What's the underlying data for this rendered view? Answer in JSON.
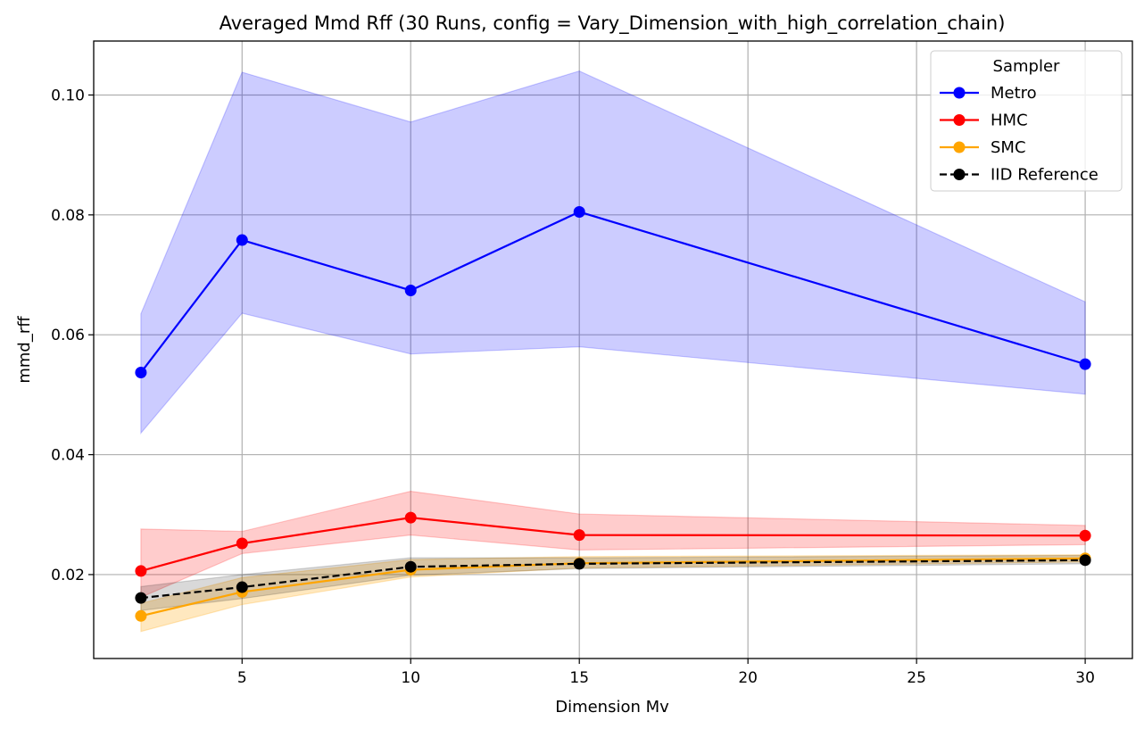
{
  "chart_data": {
    "type": "line",
    "title": "Averaged Mmd Rff (30 Runs, config = Vary_Dimension_with_high_correlation_chain)",
    "xlabel": "Dimension Mv",
    "ylabel": "mmd_rff",
    "xlim": [
      0.6,
      31.4
    ],
    "ylim": [
      0.006,
      0.109
    ],
    "x_ticks": [
      5,
      10,
      15,
      20,
      25,
      30
    ],
    "y_ticks": [
      0.02,
      0.04,
      0.06,
      0.08,
      0.1
    ],
    "x_tick_labels": [
      "5",
      "10",
      "15",
      "20",
      "25",
      "30"
    ],
    "y_tick_labels": [
      "0.02",
      "0.04",
      "0.06",
      "0.08",
      "0.10"
    ],
    "grid": true,
    "legend": {
      "title": "Sampler",
      "position": "top-right"
    },
    "x": [
      2,
      5,
      10,
      15,
      30
    ],
    "series": [
      {
        "name": "Metro",
        "color": "#0000ff",
        "dashed": false,
        "values": [
          0.0537,
          0.0758,
          0.0674,
          0.0805,
          0.0551
        ],
        "lower": [
          0.0436,
          0.0636,
          0.0568,
          0.058,
          0.0501
        ],
        "upper": [
          0.0635,
          0.1038,
          0.0955,
          0.104,
          0.0655
        ],
        "band_opacity": 0.2
      },
      {
        "name": "HMC",
        "color": "#ff0000",
        "dashed": false,
        "values": [
          0.0206,
          0.0252,
          0.0295,
          0.0266,
          0.0265
        ],
        "lower": [
          0.0162,
          0.0235,
          0.0266,
          0.0241,
          0.025
        ],
        "upper": [
          0.0276,
          0.0272,
          0.0339,
          0.0301,
          0.0282
        ],
        "band_opacity": 0.2
      },
      {
        "name": "SMC",
        "color": "#ffa500",
        "dashed": false,
        "values": [
          0.0131,
          0.0171,
          0.0208,
          0.0219,
          0.0227
        ],
        "lower": [
          0.0105,
          0.015,
          0.0196,
          0.0211,
          0.0221
        ],
        "upper": [
          0.0152,
          0.0195,
          0.0225,
          0.023,
          0.0233
        ],
        "band_opacity": 0.25
      },
      {
        "name": "IID Reference",
        "color": "#000000",
        "dashed": true,
        "values": [
          0.0161,
          0.0179,
          0.0213,
          0.0218,
          0.0224
        ],
        "lower": [
          0.014,
          0.016,
          0.0199,
          0.021,
          0.0218
        ],
        "upper": [
          0.018,
          0.02,
          0.0228,
          0.0228,
          0.0232
        ],
        "band_opacity": 0.15
      }
    ]
  }
}
